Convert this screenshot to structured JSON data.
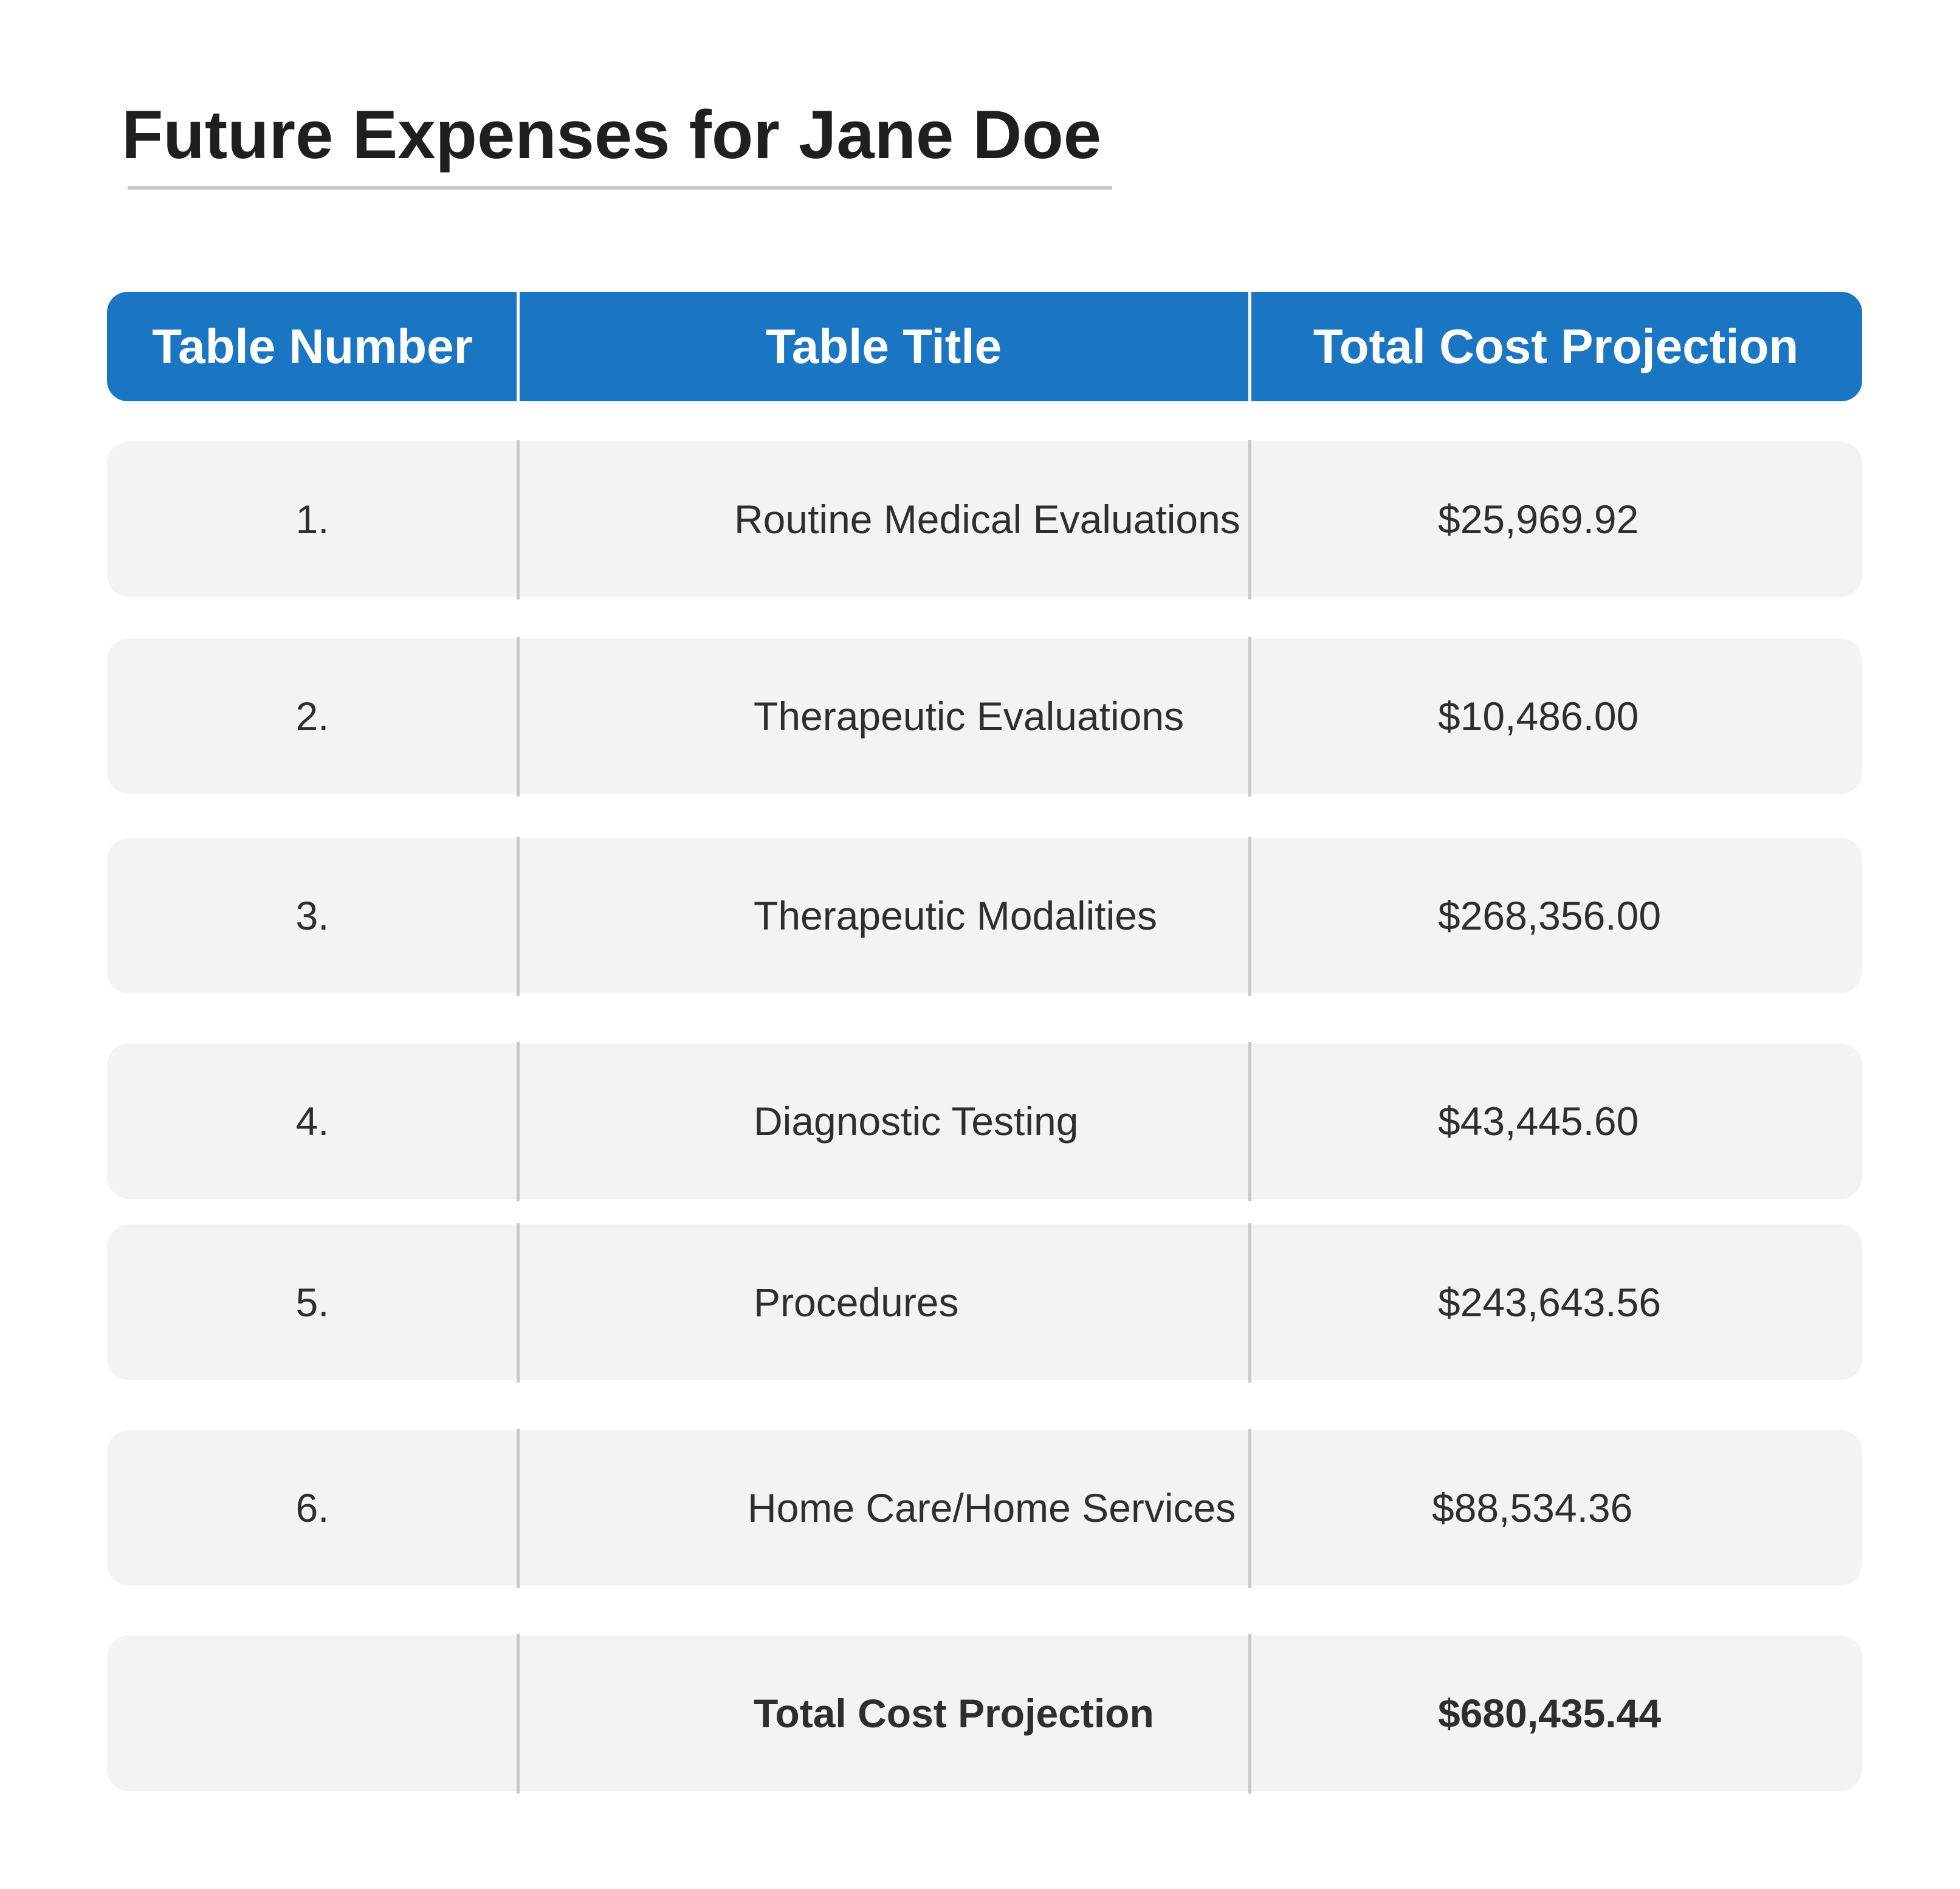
{
  "title": "Future Expenses for Jane Doe",
  "table": {
    "headers": {
      "number": "Table Number",
      "title": "Table Title",
      "cost": "Total Cost Projection"
    },
    "rows": [
      {
        "number": "1.",
        "title": "Routine Medical Evaluations",
        "cost": "$25,969.92"
      },
      {
        "number": "2.",
        "title": "Therapeutic Evaluations",
        "cost": "$10,486.00"
      },
      {
        "number": "3.",
        "title": "Therapeutic Modalities",
        "cost": "$268,356.00"
      },
      {
        "number": "4.",
        "title": "Diagnostic Testing",
        "cost": "$43,445.60"
      },
      {
        "number": "5.",
        "title": "Procedures",
        "cost": "$243,643.56"
      },
      {
        "number": "6.",
        "title": "Home Care/Home Services",
        "cost": "$88,534.36"
      }
    ],
    "total": {
      "number": "",
      "title": "Total Cost Projection",
      "cost": "$680,435.44"
    }
  },
  "colors": {
    "header_background": "#1a76c2",
    "row_background": "#f3f3f5",
    "divider": "#c8c8c8"
  }
}
